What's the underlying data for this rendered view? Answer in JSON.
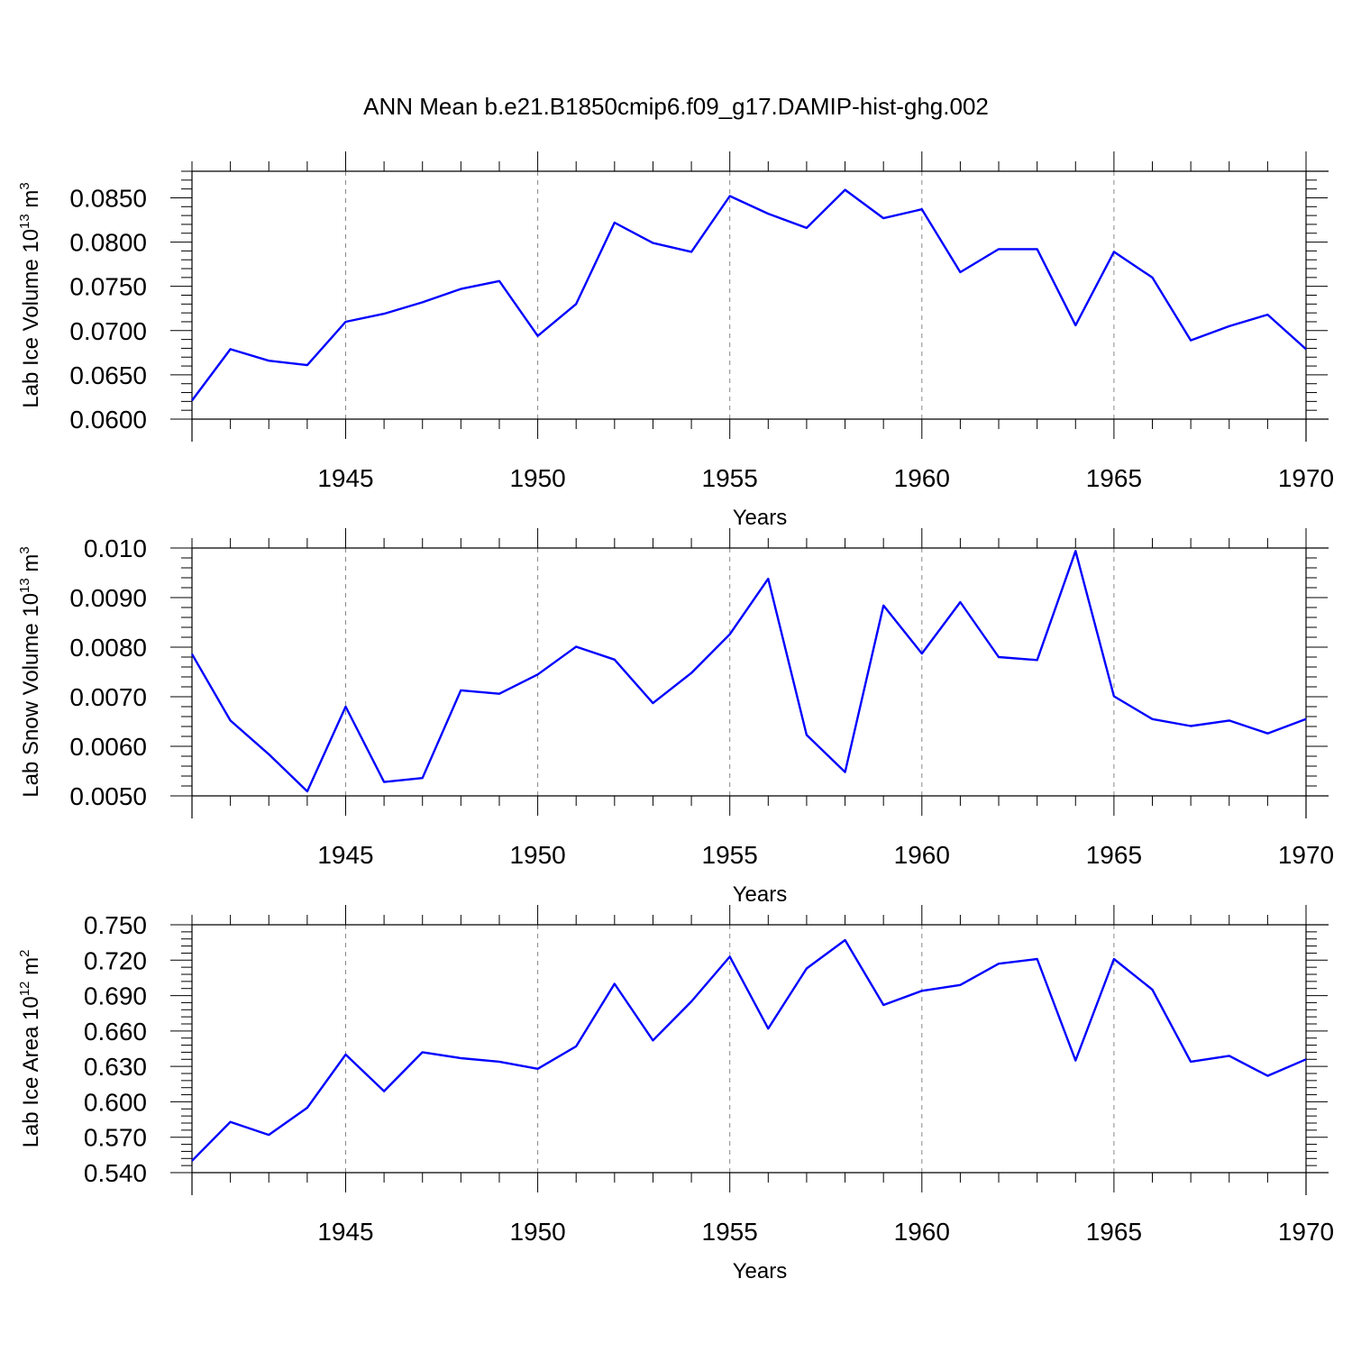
{
  "title": "ANN Mean b.e21.B1850cmip6.f09_g17.DAMIP-hist-ghg.002",
  "chart_data": [
    {
      "type": "line",
      "ylabel": "Lab Ice Volume 10",
      "ylabel_exp": "13",
      "ylabel_unit": "m",
      "ylabel_unit_exp": "3",
      "xlabel": "Years",
      "xlim": [
        1941,
        1970
      ],
      "ylim": [
        0.06,
        0.088
      ],
      "yticks": [
        0.06,
        0.065,
        0.07,
        0.075,
        0.08,
        0.085
      ],
      "ytick_labels": [
        "0.0600",
        "0.0650",
        "0.0700",
        "0.0750",
        "0.0800",
        "0.0850"
      ],
      "xticks": [
        1945,
        1950,
        1955,
        1960,
        1965,
        1970
      ],
      "xtick_labels": [
        "1945",
        "1950",
        "1955",
        "1960",
        "1965",
        "1970"
      ],
      "grid": "vertical-dashed",
      "line_color": "#0000ff",
      "x": [
        1941,
        1942,
        1943,
        1944,
        1945,
        1946,
        1947,
        1948,
        1949,
        1950,
        1951,
        1952,
        1953,
        1954,
        1955,
        1956,
        1957,
        1958,
        1959,
        1960,
        1961,
        1962,
        1963,
        1964,
        1965,
        1966,
        1967,
        1968,
        1969,
        1970
      ],
      "values": [
        0.0621,
        0.0679,
        0.0666,
        0.0661,
        0.071,
        0.0719,
        0.0732,
        0.0747,
        0.0756,
        0.0694,
        0.073,
        0.0822,
        0.0799,
        0.0789,
        0.0852,
        0.0832,
        0.0816,
        0.0859,
        0.0827,
        0.0837,
        0.0766,
        0.0792,
        0.0792,
        0.0706,
        0.0789,
        0.076,
        0.0689,
        0.0705,
        0.0718,
        0.0679
      ]
    },
    {
      "type": "line",
      "ylabel": "Lab Snow Volume 10",
      "ylabel_exp": "13",
      "ylabel_unit": "m",
      "ylabel_unit_exp": "3",
      "xlabel": "Years",
      "xlim": [
        1941,
        1970
      ],
      "ylim": [
        0.005,
        0.01
      ],
      "yticks": [
        0.005,
        0.006,
        0.007,
        0.008,
        0.009,
        0.01
      ],
      "ytick_labels": [
        "0.0050",
        "0.0060",
        "0.0070",
        "0.0080",
        "0.0090",
        "0.010"
      ],
      "xticks": [
        1945,
        1950,
        1955,
        1960,
        1965,
        1970
      ],
      "xtick_labels": [
        "1945",
        "1950",
        "1955",
        "1960",
        "1965",
        "1970"
      ],
      "grid": "vertical-dashed",
      "line_color": "#0000ff",
      "x": [
        1941,
        1942,
        1943,
        1944,
        1945,
        1946,
        1947,
        1948,
        1949,
        1950,
        1951,
        1952,
        1953,
        1954,
        1955,
        1956,
        1957,
        1958,
        1959,
        1960,
        1961,
        1962,
        1963,
        1964,
        1965,
        1966,
        1967,
        1968,
        1969,
        1970
      ],
      "values": [
        0.00786,
        0.00652,
        0.00584,
        0.00509,
        0.0068,
        0.00528,
        0.00536,
        0.00713,
        0.00706,
        0.00745,
        0.00801,
        0.00775,
        0.00687,
        0.00748,
        0.00826,
        0.00938,
        0.00623,
        0.00548,
        0.00884,
        0.00787,
        0.00891,
        0.0078,
        0.00774,
        0.00994,
        0.00701,
        0.00655,
        0.00641,
        0.00652,
        0.00626,
        0.00655
      ]
    },
    {
      "type": "line",
      "ylabel": "Lab Ice Area 10",
      "ylabel_exp": "12",
      "ylabel_unit": "m",
      "ylabel_unit_exp": "2",
      "xlabel": "Years",
      "xlim": [
        1941,
        1970
      ],
      "ylim": [
        0.54,
        0.75
      ],
      "yticks": [
        0.54,
        0.57,
        0.6,
        0.63,
        0.66,
        0.69,
        0.72,
        0.75
      ],
      "ytick_labels": [
        "0.540",
        "0.570",
        "0.600",
        "0.630",
        "0.660",
        "0.690",
        "0.720",
        "0.750"
      ],
      "xticks": [
        1945,
        1950,
        1955,
        1960,
        1965,
        1970
      ],
      "xtick_labels": [
        "1945",
        "1950",
        "1955",
        "1960",
        "1965",
        "1970"
      ],
      "grid": "vertical-dashed",
      "line_color": "#0000ff",
      "x": [
        1941,
        1942,
        1943,
        1944,
        1945,
        1946,
        1947,
        1948,
        1949,
        1950,
        1951,
        1952,
        1953,
        1954,
        1955,
        1956,
        1957,
        1958,
        1959,
        1960,
        1961,
        1962,
        1963,
        1964,
        1965,
        1966,
        1967,
        1968,
        1969,
        1970
      ],
      "values": [
        0.55,
        0.583,
        0.572,
        0.595,
        0.64,
        0.609,
        0.642,
        0.637,
        0.634,
        0.628,
        0.647,
        0.7,
        0.652,
        0.685,
        0.723,
        0.662,
        0.713,
        0.737,
        0.682,
        0.694,
        0.699,
        0.717,
        0.721,
        0.635,
        0.721,
        0.695,
        0.634,
        0.639,
        0.622,
        0.636
      ]
    }
  ]
}
